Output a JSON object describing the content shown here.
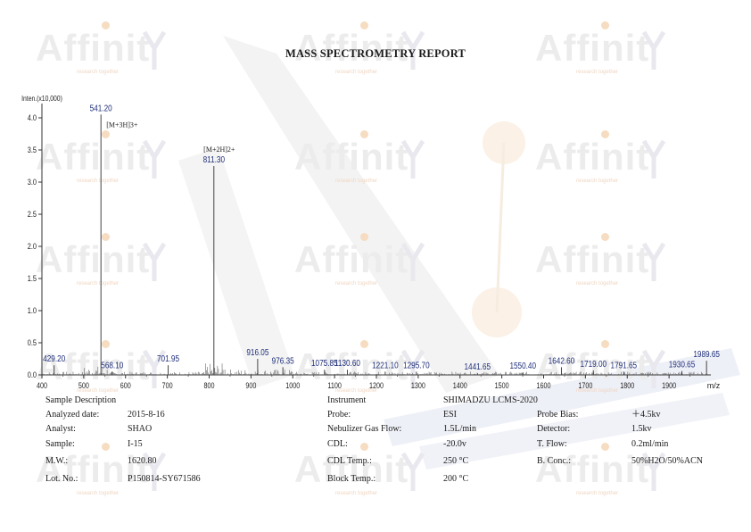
{
  "report": {
    "title": "MASS SPECTROMETRY REPORT"
  },
  "watermark": {
    "brand": "Affinit",
    "tagline": "research together",
    "brand_color": "#ececec",
    "accent_color": "#f6dcc0"
  },
  "chart_data": {
    "type": "line",
    "ylabel": "Inten.(x10,000)",
    "xlabel": "m/z",
    "xlim": [
      400,
      2000
    ],
    "ylim": [
      0,
      4.2
    ],
    "x_ticks": [
      "400",
      "500",
      "600",
      "700",
      "800",
      "900",
      "1000",
      "1100",
      "1200",
      "1300",
      "1400",
      "1500",
      "1600",
      "1700",
      "1800",
      "1900"
    ],
    "y_ticks": [
      "0.0",
      "0.5",
      "1.0",
      "1.5",
      "2.0",
      "2.5",
      "3.0",
      "3.5",
      "4.0"
    ],
    "peaks": [
      {
        "mz": 541.2,
        "intensity": 4.05,
        "label": "541.20",
        "annotation": "[M+3H]3+"
      },
      {
        "mz": 811.3,
        "intensity": 3.25,
        "label": "811.30",
        "annotation": "[M+2H]2+"
      },
      {
        "mz": 429.2,
        "intensity": 0.15,
        "label": "429.20"
      },
      {
        "mz": 568.1,
        "intensity": 0.05,
        "label": "568.10"
      },
      {
        "mz": 701.95,
        "intensity": 0.15,
        "label": "701.95"
      },
      {
        "mz": 916.05,
        "intensity": 0.25,
        "label": "916.05"
      },
      {
        "mz": 976.35,
        "intensity": 0.12,
        "label": "976.35"
      },
      {
        "mz": 1075.85,
        "intensity": 0.08,
        "label": "1075.85"
      },
      {
        "mz": 1130.6,
        "intensity": 0.08,
        "label": "1130.60"
      },
      {
        "mz": 1221.1,
        "intensity": 0.05,
        "label": "1221.10"
      },
      {
        "mz": 1295.7,
        "intensity": 0.05,
        "label": "1295.70"
      },
      {
        "mz": 1441.65,
        "intensity": 0.03,
        "label": "1441.65"
      },
      {
        "mz": 1550.4,
        "intensity": 0.04,
        "label": "1550.40"
      },
      {
        "mz": 1642.6,
        "intensity": 0.12,
        "label": "1642.60"
      },
      {
        "mz": 1719.0,
        "intensity": 0.07,
        "label": "1719.00"
      },
      {
        "mz": 1791.65,
        "intensity": 0.05,
        "label": "1791.65"
      },
      {
        "mz": 1930.65,
        "intensity": 0.06,
        "label": "1930.65"
      },
      {
        "mz": 1989.65,
        "intensity": 0.22,
        "label": "1989.65"
      }
    ],
    "line_color": "#444444",
    "label_color": "#1f2f7a",
    "grid": false
  },
  "sample": {
    "heading": "Sample Description",
    "rows": [
      {
        "label": "Analyzed date:",
        "value": "2015-8-16"
      },
      {
        "label": "Analyst:",
        "value": "SHAO"
      },
      {
        "label": "Sample:",
        "value": "I-15"
      },
      {
        "label": "M.W.:",
        "value": "1620.80"
      },
      {
        "label": "Lot. No.:",
        "value": "P150814-SY671586"
      }
    ]
  },
  "instrument": {
    "label": "Instrument",
    "value": "SHIMADZU LCMS-2020",
    "rows": [
      {
        "label": "Probe:",
        "value": "ESI"
      },
      {
        "label": "Nebulizer Gas Flow:",
        "value": "1.5L/min"
      },
      {
        "label": "CDL:",
        "value": "-20.0v"
      },
      {
        "label": "CDL Temp.:",
        "value": "250 °C"
      },
      {
        "label": "Block Temp.:",
        "value": "200 °C"
      }
    ],
    "rows2": [
      {
        "label": "Probe Bias:",
        "value": "＋4.5kv"
      },
      {
        "label": "Detector:",
        "value": "1.5kv"
      },
      {
        "label": "T. Flow:",
        "value": "0.2ml/min"
      },
      {
        "label": "B. Conc.:",
        "value": "50%H2O/50%ACN"
      }
    ]
  }
}
